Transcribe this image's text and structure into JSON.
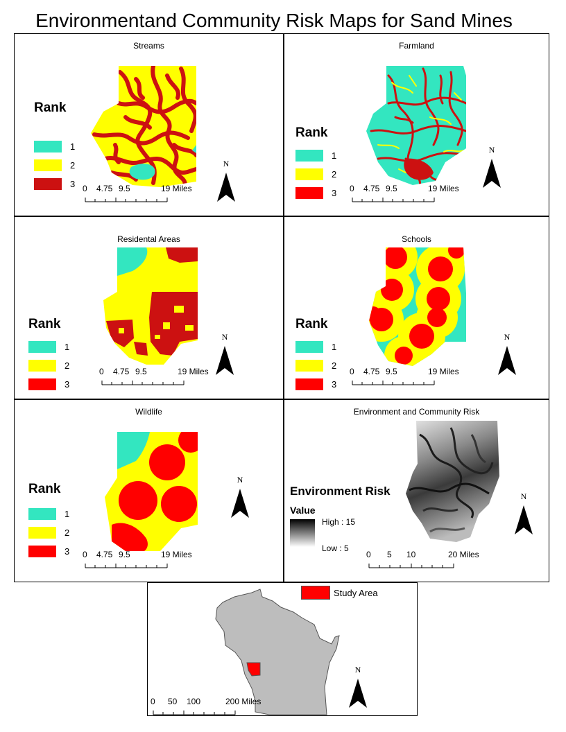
{
  "title": "Environmentand Community Risk Maps for Sand Mines",
  "colors": {
    "rank1": "#33e6c0",
    "rank2": "#ffff00",
    "rank3": "#ff0000",
    "rank3_streams": "#cc1111",
    "study": "#ff0000",
    "state": "#bdbdbd"
  },
  "legend": {
    "heading": "Rank",
    "items": [
      "1",
      "2",
      "3"
    ]
  },
  "scale_labels": [
    "0",
    "4.75",
    "9.5",
    "19 Miles"
  ],
  "north": "N",
  "panels": {
    "streams": {
      "title": "Streams"
    },
    "farmland": {
      "title": "Farmland"
    },
    "residential": {
      "title": "Residental Areas"
    },
    "schools": {
      "title": "Schools"
    },
    "wildlife": {
      "title": "Wildlife"
    },
    "risk": {
      "title": "Environment and Community Risk",
      "legend_title": "Environment Risk",
      "value_label": "Value",
      "high": "High : 15",
      "low": "Low : 5",
      "scale": [
        "0",
        "5",
        "10",
        "20 Miles"
      ]
    }
  },
  "inset": {
    "legend_label": "Study Area",
    "scale": [
      "0",
      "50",
      "100",
      "200 Miles"
    ]
  }
}
